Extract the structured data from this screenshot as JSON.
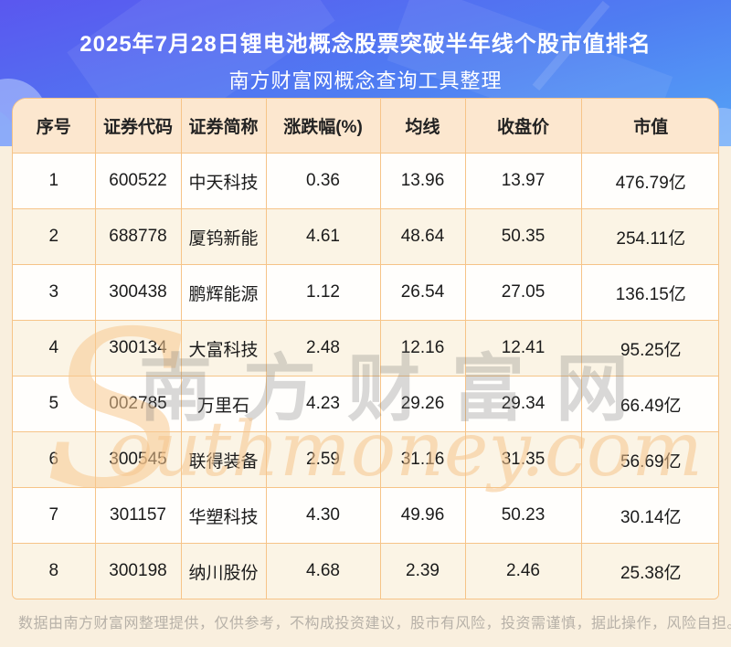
{
  "page": {
    "title_line1": "2025年7月28日锂电池概念股票突破半年线个股市值排名",
    "title_line2": "南方财富网概念查询工具整理",
    "footer_disclaimer": "数据由南方财富网整理提供，仅供参考，不构成投资建议，股市有风险，投资需谨慎，据此操作，风险自担。"
  },
  "watermark": {
    "big_s": "S",
    "cn_text": "南方财富网",
    "en_text": "outhmoney.com"
  },
  "colors": {
    "page_bg": "#f9efde",
    "band_top": "#5a57ef",
    "band_bottom": "#55a5f6",
    "header_bg": "#fce7cf",
    "row_alt_bg": "#fbf4e5",
    "table_border": "#f6c488"
  },
  "table": {
    "headers": [
      "序号",
      "证券代码",
      "证券简称",
      "涨跌幅(%)",
      "均线",
      "收盘价",
      "市值"
    ],
    "rows": [
      [
        "1",
        "600522",
        "中天科技",
        "0.36",
        "13.96",
        "13.97",
        "476.79亿"
      ],
      [
        "2",
        "688778",
        "厦钨新能",
        "4.61",
        "48.64",
        "50.35",
        "254.11亿"
      ],
      [
        "3",
        "300438",
        "鹏辉能源",
        "1.12",
        "26.54",
        "27.05",
        "136.15亿"
      ],
      [
        "4",
        "300134",
        "大富科技",
        "2.48",
        "12.16",
        "12.41",
        "95.25亿"
      ],
      [
        "5",
        "002785",
        "万里石",
        "4.23",
        "29.26",
        "29.34",
        "66.49亿"
      ],
      [
        "6",
        "300545",
        "联得装备",
        "2.59",
        "31.16",
        "31.35",
        "56.69亿"
      ],
      [
        "7",
        "301157",
        "华塑科技",
        "4.30",
        "49.96",
        "50.23",
        "30.14亿"
      ],
      [
        "8",
        "300198",
        "纳川股份",
        "4.68",
        "2.39",
        "2.46",
        "25.38亿"
      ]
    ]
  },
  "chart_data": {
    "type": "table",
    "title": "2025年7月28日锂电池概念股票突破半年线个股市值排名",
    "subtitle": "南方财富网概念查询工具整理",
    "columns": [
      "序号",
      "证券代码",
      "证券简称",
      "涨跌幅(%)",
      "均线",
      "收盘价",
      "市值"
    ],
    "rows": [
      {
        "序号": 1,
        "证券代码": "600522",
        "证券简称": "中天科技",
        "涨跌幅(%)": 0.36,
        "均线": 13.96,
        "收盘价": 13.97,
        "市值": "476.79亿"
      },
      {
        "序号": 2,
        "证券代码": "688778",
        "证券简称": "厦钨新能",
        "涨跌幅(%)": 4.61,
        "均线": 48.64,
        "收盘价": 50.35,
        "市值": "254.11亿"
      },
      {
        "序号": 3,
        "证券代码": "300438",
        "证券简称": "鹏辉能源",
        "涨跌幅(%)": 1.12,
        "均线": 26.54,
        "收盘价": 27.05,
        "市值": "136.15亿"
      },
      {
        "序号": 4,
        "证券代码": "300134",
        "证券简称": "大富科技",
        "涨跌幅(%)": 2.48,
        "均线": 12.16,
        "收盘价": 12.41,
        "市值": "95.25亿"
      },
      {
        "序号": 5,
        "证券代码": "002785",
        "证券简称": "万里石",
        "涨跌幅(%)": 4.23,
        "均线": 29.26,
        "收盘价": 29.34,
        "市值": "66.49亿"
      },
      {
        "序号": 6,
        "证券代码": "300545",
        "证券简称": "联得装备",
        "涨跌幅(%)": 2.59,
        "均线": 31.16,
        "收盘价": 31.35,
        "市值": "56.69亿"
      },
      {
        "序号": 7,
        "证券代码": "301157",
        "证券简称": "华塑科技",
        "涨跌幅(%)": 4.3,
        "均线": 49.96,
        "收盘价": 50.23,
        "市值": "30.14亿"
      },
      {
        "序号": 8,
        "证券代码": "300198",
        "证券简称": "纳川股份",
        "涨跌幅(%)": 4.68,
        "均线": 2.39,
        "收盘价": 2.46,
        "市值": "25.38亿"
      }
    ]
  }
}
